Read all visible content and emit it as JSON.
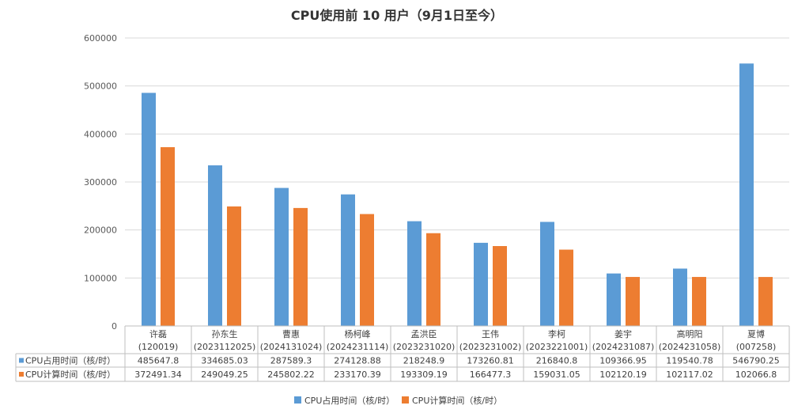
{
  "chart_data": {
    "type": "bar",
    "title": "CPU使用前 10 用户（9月1日至今）",
    "categories": [
      {
        "name": "许磊",
        "id": "(120019)"
      },
      {
        "name": "孙东生",
        "id": "(2023112025)"
      },
      {
        "name": "曹惠",
        "id": "(2024131024)"
      },
      {
        "name": "杨柯峰",
        "id": "(2024231114)"
      },
      {
        "name": "孟洪臣",
        "id": "(2023231020)"
      },
      {
        "name": "王伟",
        "id": "(2023231002)"
      },
      {
        "name": "李柯",
        "id": "(2023221001)"
      },
      {
        "name": "姜宇",
        "id": "(2024231087)"
      },
      {
        "name": "高明阳",
        "id": "(2024231058)"
      },
      {
        "name": "夏博",
        "id": "(007258)"
      }
    ],
    "series": [
      {
        "name": "CPU占用时间（核/时）",
        "color": "#5B9BD5",
        "values": [
          485647.8,
          334685.03,
          287589.3,
          274128.88,
          218248.9,
          173260.81,
          216840.8,
          109366.95,
          119540.78,
          546790.25
        ],
        "labels": [
          "485647.8",
          "334685.03",
          "287589.3",
          "274128.88",
          "218248.9",
          "173260.81",
          "216840.8",
          "109366.95",
          "119540.78",
          "546790.25"
        ]
      },
      {
        "name": "CPU计算时间（核/时）",
        "color": "#ED7D31",
        "values": [
          372491.34,
          249049.25,
          245802.22,
          233170.39,
          193309.19,
          166477.3,
          159031.05,
          102120.19,
          102117.02,
          102066.8
        ],
        "labels": [
          "372491.34",
          "249049.25",
          "245802.22",
          "233170.39",
          "193309.19",
          "166477.3",
          "159031.05",
          "102120.19",
          "102117.02",
          "102066.8"
        ]
      }
    ],
    "ylim": [
      0,
      600000
    ],
    "yticks": [
      0,
      100000,
      200000,
      300000,
      400000,
      500000,
      600000
    ],
    "ytick_labels": [
      "0",
      "100000",
      "200000",
      "300000",
      "400000",
      "500000",
      "600000"
    ],
    "grid": true,
    "legend_position": "bottom",
    "data_table": true
  }
}
